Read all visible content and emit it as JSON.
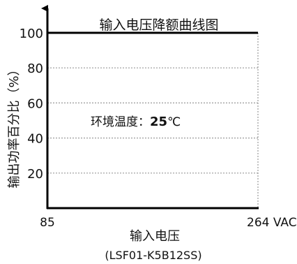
{
  "chart_data": {
    "type": "line",
    "title": "输入电压降额曲线图",
    "xlabel": "输入电压",
    "ylabel": "输出功率百分比（%）",
    "model": "(LSF01-K5B12SS)",
    "xlim": [
      85,
      264
    ],
    "ylim": [
      0,
      100
    ],
    "x_ticks": [
      {
        "value": 85,
        "label": "85"
      },
      {
        "value": 264,
        "label": "264 VAC"
      }
    ],
    "y_ticks": [
      20,
      40,
      60,
      80,
      100
    ],
    "grid": true,
    "series": [
      {
        "x": [
          85,
          264
        ],
        "y": [
          100,
          100
        ],
        "color": "#000000"
      }
    ],
    "annotation": {
      "label": "环境温度：",
      "value": "25",
      "unit": "℃"
    }
  }
}
